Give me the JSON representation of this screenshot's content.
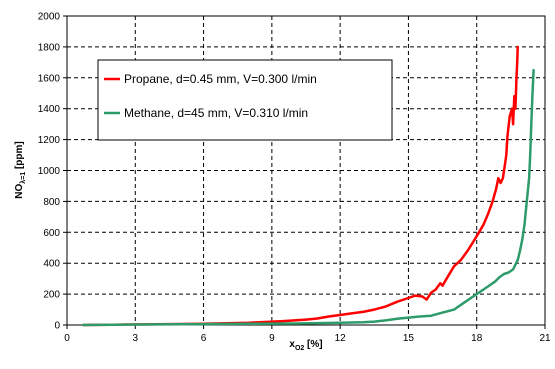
{
  "chart_data": {
    "type": "line",
    "xlabel": {
      "main": "x",
      "sub": "O2",
      "tail": " [%]"
    },
    "ylabel": {
      "main": "NO",
      "sub": "λ=1",
      "tail": " [ppm]"
    },
    "xlim": [
      0,
      21
    ],
    "ylim": [
      0,
      2000
    ],
    "xticks": [
      0,
      3,
      6,
      9,
      12,
      15,
      18,
      21
    ],
    "yticks": [
      0,
      200,
      400,
      600,
      800,
      1000,
      1200,
      1400,
      1600,
      1800,
      2000
    ],
    "grid": "dashed",
    "legend_position": "upper-left (inside plot)",
    "series": [
      {
        "name": "Propane, d=0.45 mm, V=0.300 l/min",
        "color": "#ff0000",
        "x": [
          0.7,
          2,
          4,
          6,
          8,
          9.5,
          10.5,
          11,
          11.5,
          12,
          12.5,
          13,
          13.5,
          14,
          14.5,
          15,
          15.3,
          15.6,
          15.8,
          16.0,
          16.2,
          16.3,
          16.4,
          16.5,
          16.6,
          16.8,
          17.0,
          17.3,
          17.6,
          17.9,
          18.1,
          18.3,
          18.5,
          18.7,
          18.85,
          18.95,
          19.05,
          19.15,
          19.25,
          19.3,
          19.35,
          19.45,
          19.55,
          19.6,
          19.65,
          19.7,
          19.75,
          19.78,
          19.8
        ],
        "y": [
          0,
          2,
          5,
          8,
          15,
          25,
          35,
          42,
          55,
          65,
          75,
          85,
          100,
          120,
          150,
          175,
          190,
          185,
          165,
          210,
          230,
          250,
          270,
          255,
          280,
          330,
          380,
          420,
          480,
          550,
          600,
          650,
          720,
          800,
          880,
          950,
          920,
          950,
          1050,
          1100,
          1220,
          1350,
          1400,
          1300,
          1480,
          1400,
          1600,
          1700,
          1800
        ]
      },
      {
        "name": "Methane, d=45 mm, V=0.310 l/min",
        "color": "#2e9b6a",
        "x": [
          0.7,
          2,
          4,
          6,
          8,
          10,
          11,
          12,
          13,
          13.5,
          14,
          14.5,
          15,
          15.5,
          16,
          16.5,
          17,
          17.5,
          18,
          18.5,
          18.8,
          19,
          19.2,
          19.4,
          19.6,
          19.8,
          19.9,
          20.0,
          20.1,
          20.2,
          20.3,
          20.35,
          20.4,
          20.45,
          20.5
        ],
        "y": [
          0,
          2,
          4,
          6,
          8,
          10,
          12,
          15,
          18,
          22,
          30,
          40,
          48,
          55,
          60,
          80,
          100,
          150,
          200,
          250,
          280,
          310,
          330,
          340,
          360,
          420,
          480,
          550,
          650,
          800,
          950,
          1100,
          1300,
          1500,
          1650
        ]
      }
    ]
  }
}
